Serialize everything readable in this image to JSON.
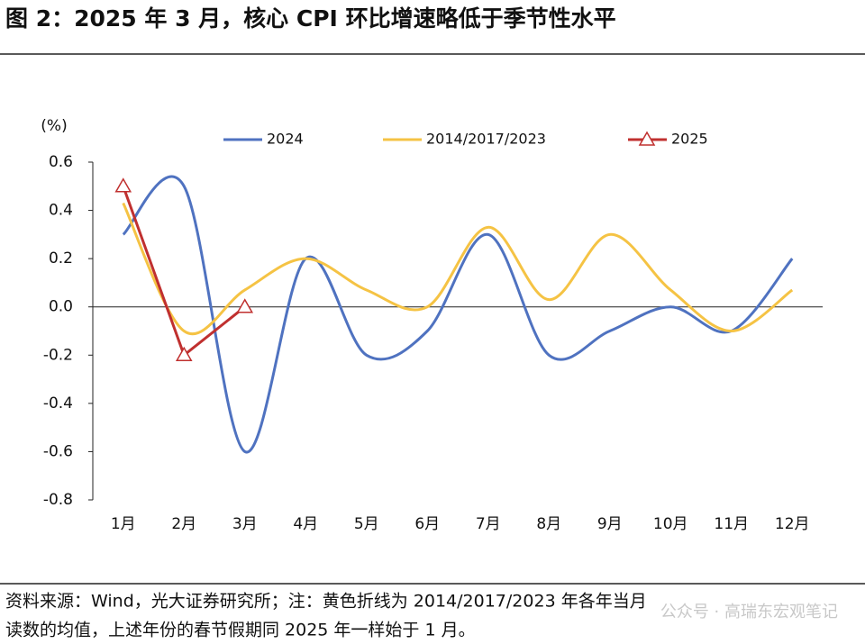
{
  "chart_data": {
    "type": "line",
    "title": "图 2：2025 年 3 月，核心 CPI 环比增速略低于季节性水平",
    "y_unit": "(%)",
    "categories": [
      "1月",
      "2月",
      "3月",
      "4月",
      "5月",
      "6月",
      "7月",
      "8月",
      "9月",
      "10月",
      "11月",
      "12月"
    ],
    "series": [
      {
        "name": "2024",
        "color": "#4f72c0",
        "smooth": true,
        "values": [
          0.3,
          0.5,
          -0.6,
          0.2,
          -0.2,
          -0.1,
          0.3,
          -0.2,
          -0.1,
          0.0,
          -0.1,
          0.2
        ]
      },
      {
        "name": "2014/2017/2023",
        "color": "#f5c344",
        "smooth": true,
        "values": [
          0.43,
          -0.1,
          0.07,
          0.2,
          0.07,
          0.0,
          0.33,
          0.03,
          0.3,
          0.07,
          -0.1,
          0.07
        ]
      },
      {
        "name": "2025",
        "color": "#c0302f",
        "smooth": false,
        "marker": "triangle",
        "values": [
          0.5,
          -0.2,
          0.0,
          null,
          null,
          null,
          null,
          null,
          null,
          null,
          null,
          null
        ]
      }
    ],
    "ylim": [
      -0.8,
      0.6
    ],
    "yticks": [
      -0.8,
      -0.6,
      -0.4,
      -0.2,
      {
        "value": 0,
        "label": "0.0"
      },
      0.2,
      0.4,
      0.6
    ],
    "legend": "top",
    "source": [
      "资料来源：Wind，光大证券研究所；注：黄色折线为 2014/2017/2023 年各年当月",
      "读数的均值，上述年份的春节假期同 2025 年一样始于 1 月。"
    ],
    "watermark": "公众号 · 高瑞东宏观笔记"
  }
}
